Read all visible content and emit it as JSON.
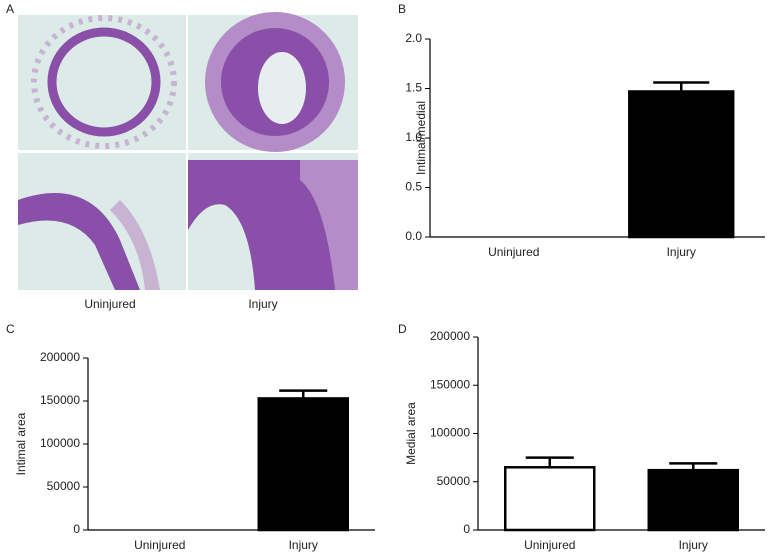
{
  "figure_a": {
    "label": "A",
    "captions": [
      "Uninjured",
      "Injury"
    ]
  },
  "chart_data": [
    {
      "type": "bar",
      "label": "B",
      "ylabel": "Intimal/medial",
      "categories": [
        "Uninjured",
        "Injury"
      ],
      "values": [
        0,
        1.47
      ],
      "errors": [
        0,
        0.09
      ],
      "colors": [
        "#000000",
        "#000000"
      ],
      "ylim": [
        0,
        2
      ],
      "yticks": [
        {
          "value": 0,
          "label": "0.0"
        },
        0.5,
        {
          "value": 1,
          "label": "1.0"
        },
        1.5,
        {
          "value": 2,
          "label": "2.0"
        }
      ]
    },
    {
      "type": "bar",
      "label": "C",
      "ylabel": "Intimal area",
      "categories": [
        "Uninjured",
        "Injury"
      ],
      "values": [
        0,
        153000
      ],
      "errors": [
        0,
        9000
      ],
      "colors": [
        "#000000",
        "#000000"
      ],
      "ylim": [
        0,
        200000
      ],
      "yticks": [
        0,
        50000,
        100000,
        150000,
        200000
      ]
    },
    {
      "type": "bar",
      "label": "D",
      "ylabel": "Medial area",
      "categories": [
        "Uninjured",
        "Injury"
      ],
      "values": [
        65000,
        62000
      ],
      "errors": [
        10000,
        7000
      ],
      "colors": [
        "#ffffff",
        "#000000"
      ],
      "ylim": [
        0,
        200000
      ],
      "yticks": [
        0,
        50000,
        100000,
        150000,
        200000
      ]
    }
  ]
}
